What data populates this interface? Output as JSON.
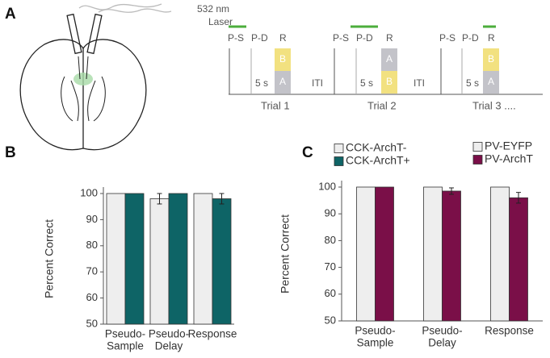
{
  "panels": [
    "A",
    "B",
    "C"
  ],
  "schematic": {
    "laser": [
      "532 nm",
      "Laser"
    ],
    "markers": [
      "P-S",
      "P-D",
      "R"
    ],
    "delay": "5 s",
    "iti": "ITI",
    "trials": [
      "Trial 1",
      "Trial 2",
      "Trial 3 ...."
    ],
    "cards": [
      "A",
      "B"
    ]
  },
  "chart_data": [
    {
      "type": "bar",
      "ylabel": "Percent Correct",
      "categories": [
        [
          "Pseudo-",
          "Sample"
        ],
        [
          "Pseudo-",
          "Delay"
        ],
        [
          "Response"
        ]
      ],
      "series": [
        {
          "name": "CCK-ArchT-",
          "color": "#eeeeee",
          "values": [
            100,
            98,
            100
          ],
          "errors": [
            0,
            2,
            0
          ]
        },
        {
          "name": "CCK-ArchT+",
          "color": "#0e6466",
          "values": [
            100,
            100,
            98
          ],
          "errors": [
            0,
            0,
            2
          ]
        }
      ],
      "ylim": [
        50,
        100
      ],
      "yticks": [
        50,
        60,
        70,
        80,
        90,
        100
      ],
      "legend": "upper right"
    },
    {
      "type": "bar",
      "ylabel": "Percent Correct",
      "categories": [
        [
          "Pseudo-",
          "Sample"
        ],
        [
          "Pseudo-",
          "Delay"
        ],
        [
          "Response"
        ]
      ],
      "series": [
        {
          "name": "PV-EYFP",
          "color": "#eeeeee",
          "values": [
            100,
            100,
            100
          ],
          "errors": [
            0,
            0,
            0
          ]
        },
        {
          "name": "PV-ArchT",
          "color": "#7a0f48",
          "values": [
            100,
            98.5,
            96
          ],
          "errors": [
            0,
            1.2,
            2
          ]
        }
      ],
      "ylim": [
        50,
        100
      ],
      "yticks": [
        50,
        60,
        70,
        80,
        90,
        100
      ],
      "legend": "upper right"
    }
  ]
}
